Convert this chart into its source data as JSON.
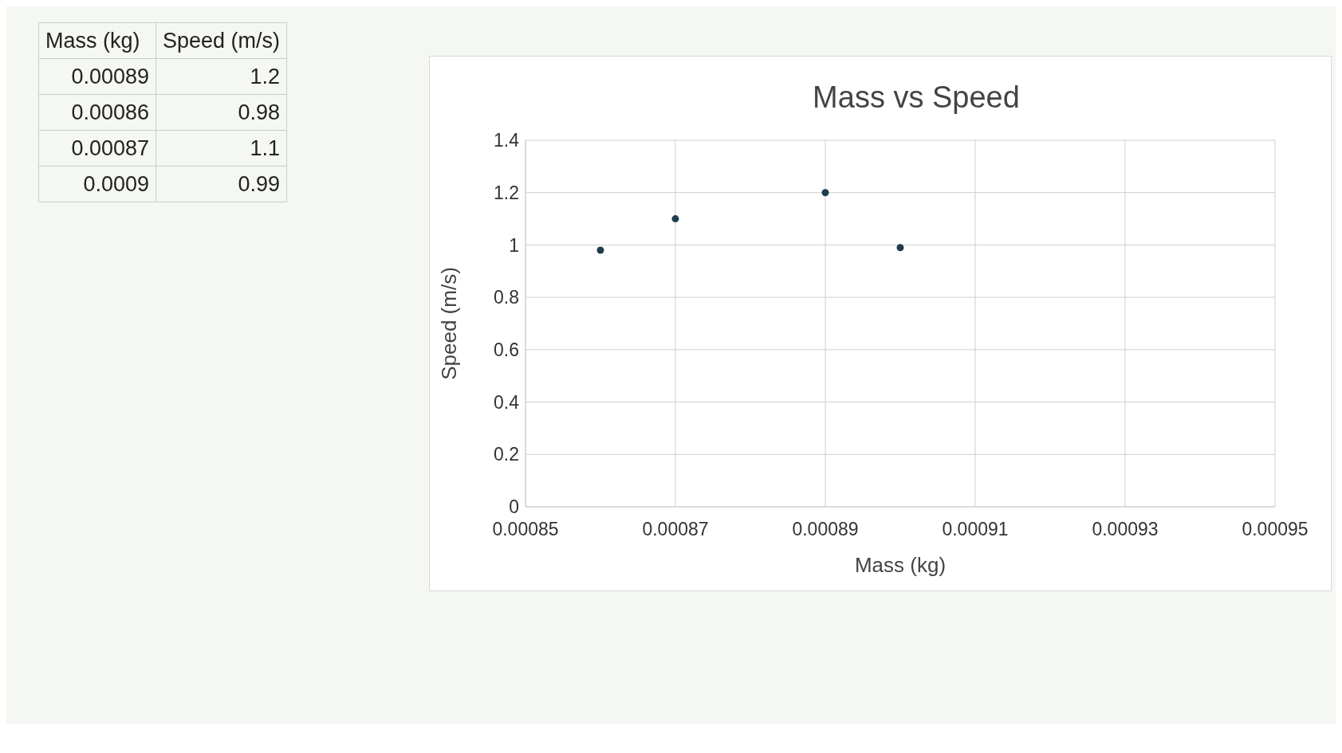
{
  "chart_data": {
    "type": "scatter",
    "title": "Mass vs Speed",
    "xlabel": "Mass (kg)",
    "ylabel": "Speed (m/s)",
    "x": [
      0.00089,
      0.00086,
      0.00087,
      0.0009
    ],
    "values": [
      1.2,
      0.98,
      1.1,
      0.99
    ],
    "color": "#1f3d4f",
    "xlim": [
      0.00085,
      0.00095
    ],
    "xticks": [
      0.00085,
      0.00087,
      0.00089,
      0.00091,
      0.00093,
      0.00095
    ],
    "ylim": [
      0,
      1.4
    ],
    "yticks": [
      0,
      0.2,
      0.4,
      0.6,
      0.8,
      1,
      1.2,
      1.4
    ],
    "grid": true,
    "marker": "circle",
    "annotations": [
      "Mass (kg)",
      "Speed (m/s)",
      "0.00089",
      "1.2",
      "0.00086",
      "0.98",
      "0.00087",
      "1.1",
      "0.0009",
      "0.99"
    ]
  }
}
